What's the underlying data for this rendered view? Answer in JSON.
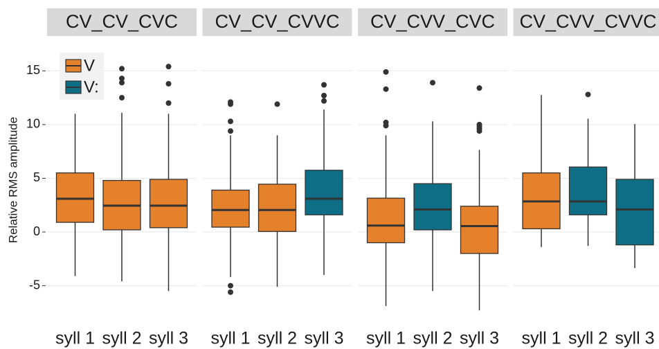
{
  "chart_data": {
    "type": "box",
    "ylabel": "Relative RMS amplitude",
    "ylim": [
      -8.7,
      17.6
    ],
    "yticks": [
      -5,
      0,
      5,
      10,
      15
    ],
    "grid": true,
    "legend": "top-left",
    "series": [
      {
        "name": "V",
        "color": "#e5812b"
      },
      {
        "name": "V:",
        "color": "#0e6e86"
      }
    ],
    "panels": [
      {
        "title": "CV_CV_CVC",
        "categories": [
          "syll 1",
          "syll 2",
          "syll 3"
        ],
        "boxes": [
          {
            "series": 0,
            "min": -4.1,
            "q1": 0.9,
            "median": 3.1,
            "q3": 5.5,
            "max": 11.0,
            "outliers": []
          },
          {
            "series": 0,
            "min": -4.6,
            "q1": 0.2,
            "median": 2.45,
            "q3": 4.8,
            "max": 11.1,
            "outliers": [
              15.2,
              14.3,
              13.9,
              12.5
            ]
          },
          {
            "series": 0,
            "min": -5.5,
            "q1": 0.4,
            "median": 2.45,
            "q3": 4.9,
            "max": 11.0,
            "outliers": [
              15.4,
              13.8,
              12.0
            ]
          }
        ]
      },
      {
        "title": "CV_CV_CVVC",
        "categories": [
          "syll 1",
          "syll 2",
          "syll 3"
        ],
        "boxes": [
          {
            "series": 0,
            "min": -4.2,
            "q1": 0.45,
            "median": 2.05,
            "q3": 3.9,
            "max": 9.0,
            "outliers": [
              12.1,
              11.9,
              10.3,
              9.4,
              -5.0,
              -5.6
            ]
          },
          {
            "series": 0,
            "min": -5.1,
            "q1": 0.05,
            "median": 2.05,
            "q3": 4.45,
            "max": 9.0,
            "outliers": [
              11.9
            ]
          },
          {
            "series": 1,
            "min": -4.0,
            "q1": 1.6,
            "median": 3.1,
            "q3": 5.75,
            "max": 11.4,
            "outliers": [
              13.7,
              12.7,
              12.2
            ]
          }
        ]
      },
      {
        "title": "CV_CVV_CVC",
        "categories": [
          "syll 1",
          "syll 2",
          "syll 3"
        ],
        "boxes": [
          {
            "series": 0,
            "min": -6.9,
            "q1": -1.0,
            "median": 0.6,
            "q3": 3.15,
            "max": 9.0,
            "outliers": [
              14.9,
              13.3,
              10.2,
              9.9
            ]
          },
          {
            "series": 1,
            "min": -5.5,
            "q1": 0.2,
            "median": 2.1,
            "q3": 4.5,
            "max": 10.3,
            "outliers": [
              13.9
            ]
          },
          {
            "series": 0,
            "min": -7.3,
            "q1": -2.0,
            "median": 0.55,
            "q3": 2.4,
            "max": 7.65,
            "outliers": [
              13.4,
              10.0,
              9.8,
              9.6,
              9.4
            ]
          }
        ]
      },
      {
        "title": "CV_CVV_CVVC",
        "categories": [
          "syll 1",
          "syll 2",
          "syll 3"
        ],
        "boxes": [
          {
            "series": 0,
            "min": -1.4,
            "q1": 0.3,
            "median": 2.85,
            "q3": 5.5,
            "max": 12.75,
            "outliers": []
          },
          {
            "series": 1,
            "min": -1.3,
            "q1": 1.6,
            "median": 2.85,
            "q3": 6.05,
            "max": 10.55,
            "outliers": [
              12.8
            ]
          },
          {
            "series": 1,
            "min": -3.35,
            "q1": -1.2,
            "median": 2.1,
            "q3": 4.9,
            "max": 10.05,
            "outliers": []
          }
        ]
      }
    ]
  }
}
